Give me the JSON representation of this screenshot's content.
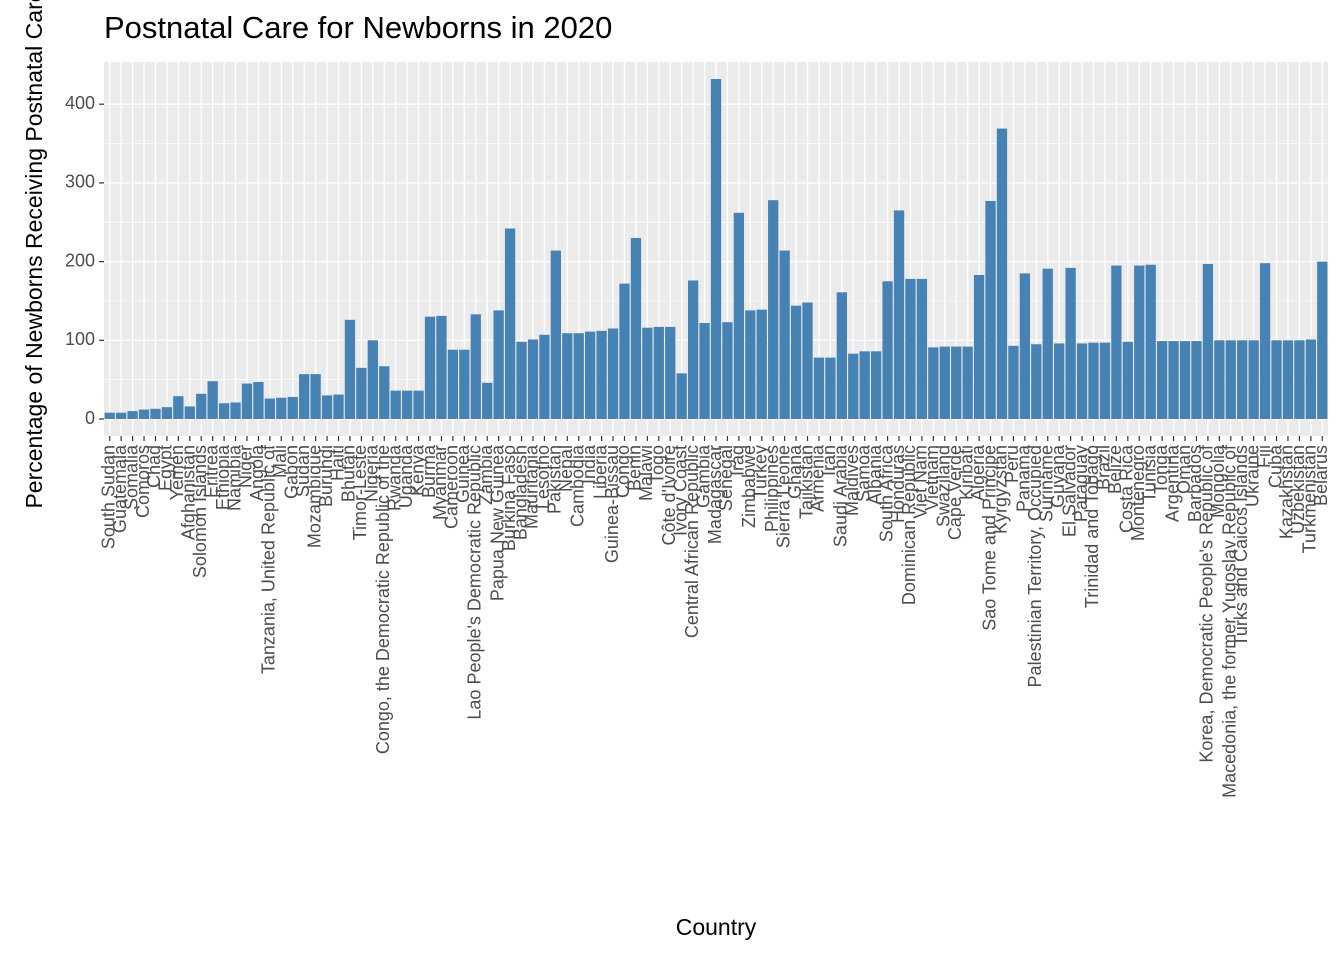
{
  "chart_data": {
    "type": "bar",
    "title": "Postnatal Care for Newborns in 2020",
    "x_label": "Country",
    "y_label": "Percentage of Newborns Receiving Postnatal Care",
    "categories": [
      "South Sudan",
      "Guatemala",
      "Somalia",
      "Comoros",
      "Chad",
      "Egypt",
      "Yemen",
      "Afghanistan",
      "Solomon Islands",
      "Eritrea",
      "Ethiopia",
      "Namibia",
      "Niger",
      "Angola",
      "Tanzania, United Republic of",
      "Mali",
      "Gabon",
      "Sudan",
      "Mozambique",
      "Burundi",
      "Haiti",
      "Bhutan",
      "Timor-Leste",
      "Nigeria",
      "Congo, the Democratic Republic of the",
      "Rwanda",
      "Uganda",
      "Kenya",
      "Burma",
      "Myanmar",
      "Cameroon",
      "Guinea",
      "Lao People's Democratic Republic",
      "Zambia",
      "Papua New Guinea",
      "Burkina Faso",
      "Bangladesh",
      "Mauritania",
      "Lesotho",
      "Pakistan",
      "Nepal",
      "Cambodia",
      "India",
      "Liberia",
      "Guinea-Bissau",
      "Congo",
      "Benin",
      "Malawi",
      "Togo",
      "Côte d'Ivoire",
      "Ivory Coast",
      "Central African Republic",
      "Gambia",
      "Madagascar",
      "Senegal",
      "Iraq",
      "Zimbabwe",
      "Turkey",
      "Philippines",
      "Sierra Leone",
      "Ghana",
      "Tajikistan",
      "Armenia",
      "Iran",
      "Saudi Arabia",
      "Maldives",
      "Samoa",
      "Albania",
      "South Africa",
      "Honduras",
      "Dominican Republic",
      "Viet Nam",
      "Vietnam",
      "Swaziland",
      "Cape Verde",
      "Kiribati",
      "Algeria",
      "Sao Tome and Principe",
      "Kyrgyzstan",
      "Peru",
      "Panama",
      "Palestinian Territory, Occupied",
      "Suriname",
      "Guyana",
      "El Salvador",
      "Paraguay",
      "Trinidad and Tobago",
      "Brazil",
      "Belize",
      "Costa Rica",
      "Montenegro",
      "Tunisia",
      "Tonga",
      "Argentina",
      "Oman",
      "Barbados",
      "Korea, Democratic People's Republic of",
      "Mongolia",
      "Macedonia, the former Yugoslav Republic of",
      "Turks and Caicos Islands",
      "Ukraine",
      "Fiji",
      "Cuba",
      "Kazakhstan",
      "Uzbekistan",
      "Turkmenistan",
      "Belarus"
    ],
    "values": [
      8,
      8,
      10,
      12,
      13,
      15,
      29,
      16,
      32,
      48,
      20,
      21,
      45,
      47,
      26,
      27,
      28,
      57,
      57,
      30,
      31,
      126,
      65,
      100,
      67,
      36,
      36,
      36,
      130,
      131,
      88,
      88,
      133,
      46,
      138,
      242,
      98,
      101,
      107,
      214,
      109,
      109,
      111,
      112,
      115,
      172,
      230,
      116,
      117,
      117,
      58,
      176,
      122,
      432,
      123,
      262,
      138,
      139,
      278,
      214,
      144,
      148,
      78,
      78,
      161,
      83,
      86,
      86,
      175,
      265,
      178,
      178,
      91,
      92,
      92,
      92,
      183,
      277,
      369,
      93,
      185,
      95,
      191,
      96,
      192,
      96,
      97,
      97,
      195,
      98,
      195,
      196,
      99,
      99,
      99,
      99,
      197,
      100,
      100,
      100,
      100,
      198,
      100,
      100,
      100,
      101,
      200
    ],
    "color": "#4682b4",
    "ylim": [
      -21.6,
      453.6
    ],
    "yticks": [
      0,
      100,
      200,
      300,
      400
    ],
    "grid": true
  }
}
